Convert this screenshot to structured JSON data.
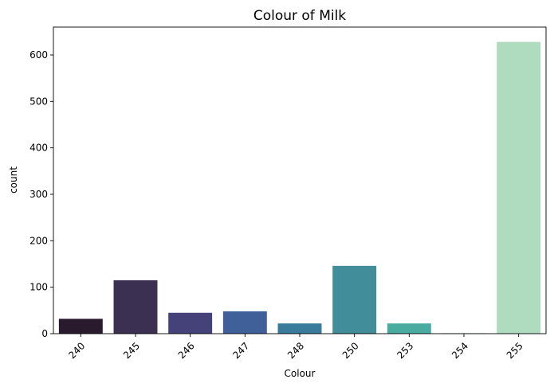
{
  "chart_data": {
    "type": "bar",
    "title": "Colour of Milk",
    "xlabel": "Colour",
    "ylabel": "count",
    "categories": [
      "240",
      "245",
      "246",
      "247",
      "248",
      "250",
      "253",
      "254",
      "255"
    ],
    "values": [
      32,
      115,
      45,
      48,
      22,
      146,
      22,
      1,
      628
    ],
    "colors": [
      "#2a1a2e",
      "#3b2f52",
      "#45427a",
      "#40609a",
      "#3a7a9a",
      "#428d9a",
      "#4aaca0",
      "#7fcab0",
      "#afdbbf"
    ],
    "ylim": [
      0,
      660
    ],
    "yticks": [
      0,
      100,
      200,
      300,
      400,
      500,
      600
    ],
    "x_tick_rotation": 45,
    "grid": false,
    "legend": "none"
  }
}
